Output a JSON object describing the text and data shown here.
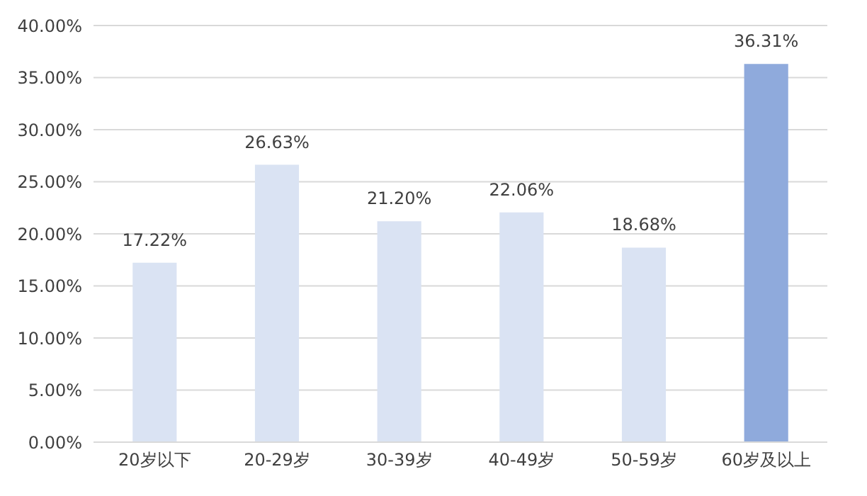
{
  "chart_data": {
    "type": "bar",
    "categories": [
      "20岁以下",
      "20-29岁",
      "30-39岁",
      "40-49岁",
      "50-59岁",
      "60岁及以上"
    ],
    "values": [
      17.22,
      26.63,
      21.2,
      22.06,
      18.68,
      36.31
    ],
    "colors": [
      "#dae3f3",
      "#dae3f3",
      "#dae3f3",
      "#dae3f3",
      "#dae3f3",
      "#8faadc"
    ],
    "value_labels": [
      "17.22%",
      "26.63%",
      "21.20%",
      "22.06%",
      "18.68%",
      "36.31%"
    ],
    "ylim": [
      0,
      40
    ],
    "yticks": [
      {
        "value": 0,
        "label": "0.00%"
      },
      {
        "value": 5,
        "label": "5.00%"
      },
      {
        "value": 10,
        "label": "10.00%"
      },
      {
        "value": 15,
        "label": "15.00%"
      },
      {
        "value": 20,
        "label": "20.00%"
      },
      {
        "value": 25,
        "label": "25.00%"
      },
      {
        "value": 30,
        "label": "30.00%"
      },
      {
        "value": 35,
        "label": "35.00%"
      },
      {
        "value": 40,
        "label": "40.00%"
      }
    ],
    "grid": "y"
  }
}
